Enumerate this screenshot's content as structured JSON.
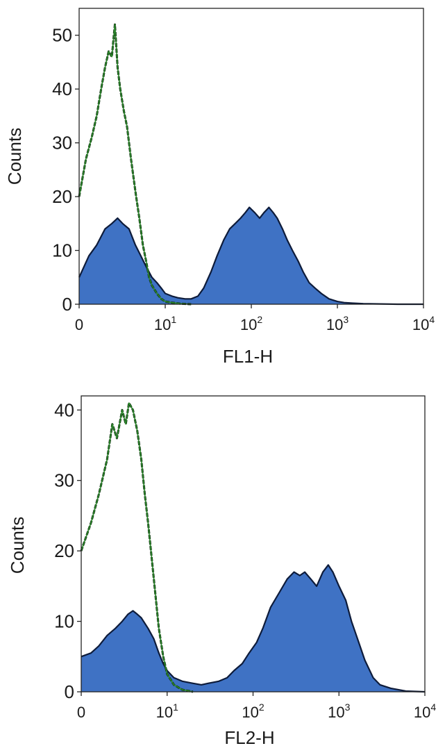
{
  "colors": {
    "fill": "#3f72c4",
    "fill_edge": "#0d1b3a",
    "control_line": "#2e8b2e",
    "control_edge": "#0a2a0a",
    "frame": "#222222"
  },
  "chart_data": [
    {
      "type": "area",
      "xlabel": "FL1-H",
      "ylabel": "Counts",
      "x_scale": "log",
      "xlim": [
        0,
        10000
      ],
      "ylim": [
        0,
        55
      ],
      "x_ticks": [
        {
          "value": 0,
          "label": "0",
          "exp": ""
        },
        {
          "value": 10,
          "label": "10",
          "exp": "1"
        },
        {
          "value": 100,
          "label": "10",
          "exp": "2"
        },
        {
          "value": 1000,
          "label": "10",
          "exp": "3"
        },
        {
          "value": 10000,
          "label": "10",
          "exp": "4"
        }
      ],
      "y_ticks": [
        0,
        10,
        20,
        30,
        40,
        50
      ],
      "series": [
        {
          "role": "stained",
          "style": "filled",
          "x": [
            1,
            1.3,
            1.6,
            2,
            2.4,
            2.8,
            3.2,
            3.8,
            4.5,
            5.2,
            6,
            7,
            8,
            9,
            10,
            12,
            14,
            17,
            20,
            24,
            28,
            34,
            40,
            48,
            56,
            65,
            75,
            85,
            95,
            110,
            125,
            140,
            160,
            180,
            200,
            230,
            260,
            300,
            350,
            400,
            470,
            550,
            650,
            800,
            1000,
            1200,
            1500,
            2000,
            5000,
            10000
          ],
          "y": [
            5,
            9,
            11,
            14,
            15,
            16,
            15,
            14,
            11,
            9,
            7,
            5,
            4,
            3,
            2,
            1.5,
            1.2,
            1,
            1,
            1.5,
            3,
            6,
            9,
            12,
            14,
            15,
            16,
            17,
            18,
            17,
            16,
            17,
            18,
            17,
            16,
            14,
            12,
            10,
            8,
            6,
            4,
            3,
            2,
            1,
            0.5,
            0.3,
            0.2,
            0.1,
            0,
            0
          ]
        },
        {
          "role": "control",
          "style": "line",
          "x": [
            1,
            1.2,
            1.4,
            1.6,
            1.8,
            2,
            2.2,
            2.4,
            2.6,
            2.8,
            3,
            3.3,
            3.6,
            4,
            4.5,
            5,
            5.5,
            6,
            6.5,
            7,
            8,
            9,
            10,
            12,
            15,
            20
          ],
          "y": [
            20,
            27,
            31,
            35,
            40,
            44,
            47,
            46,
            52,
            44,
            40,
            36,
            33,
            27,
            21,
            16,
            11,
            8,
            5,
            3.5,
            2,
            1,
            0.5,
            0.3,
            0.1,
            0
          ]
        }
      ]
    },
    {
      "type": "area",
      "xlabel": "FL2-H",
      "ylabel": "Counts",
      "x_scale": "log",
      "xlim": [
        0,
        10000
      ],
      "ylim": [
        0,
        42
      ],
      "x_ticks": [
        {
          "value": 0,
          "label": "0",
          "exp": ""
        },
        {
          "value": 10,
          "label": "10",
          "exp": "1"
        },
        {
          "value": 100,
          "label": "10",
          "exp": "2"
        },
        {
          "value": 1000,
          "label": "10",
          "exp": "3"
        },
        {
          "value": 10000,
          "label": "10",
          "exp": "4"
        }
      ],
      "y_ticks": [
        0,
        10,
        20,
        30,
        40
      ],
      "series": [
        {
          "role": "stained",
          "style": "filled",
          "x": [
            1,
            1.3,
            1.6,
            2,
            2.5,
            3,
            3.5,
            4,
            4.5,
            5,
            6,
            7,
            8,
            9,
            10,
            12,
            15,
            20,
            25,
            30,
            40,
            50,
            60,
            75,
            90,
            110,
            130,
            160,
            200,
            250,
            300,
            350,
            400,
            470,
            550,
            650,
            750,
            850,
            1000,
            1200,
            1400,
            1700,
            2000,
            2500,
            3000,
            4000,
            6000,
            10000
          ],
          "y": [
            5,
            5.5,
            6.5,
            8,
            9,
            10,
            11,
            11.5,
            11,
            10.5,
            9,
            7.5,
            5.5,
            4,
            3,
            2,
            1.5,
            1.2,
            1,
            1.2,
            1.5,
            2,
            3,
            4,
            5.5,
            7,
            9,
            12,
            14,
            16,
            17,
            16.5,
            17,
            16,
            15,
            17,
            18,
            17,
            15,
            13,
            10,
            7,
            4.5,
            2,
            1,
            0.5,
            0.1,
            0
          ]
        },
        {
          "role": "control",
          "style": "line",
          "x": [
            1,
            1.3,
            1.6,
            2,
            2.3,
            2.6,
            3,
            3.3,
            3.6,
            4,
            4.5,
            5,
            5.5,
            6,
            7,
            8,
            9,
            10,
            12,
            15,
            20
          ],
          "y": [
            20,
            24,
            28,
            33,
            38,
            36,
            40,
            38,
            41,
            40,
            37,
            33,
            28,
            24,
            16,
            9,
            5,
            2.5,
            1,
            0.3,
            0
          ]
        }
      ]
    }
  ]
}
